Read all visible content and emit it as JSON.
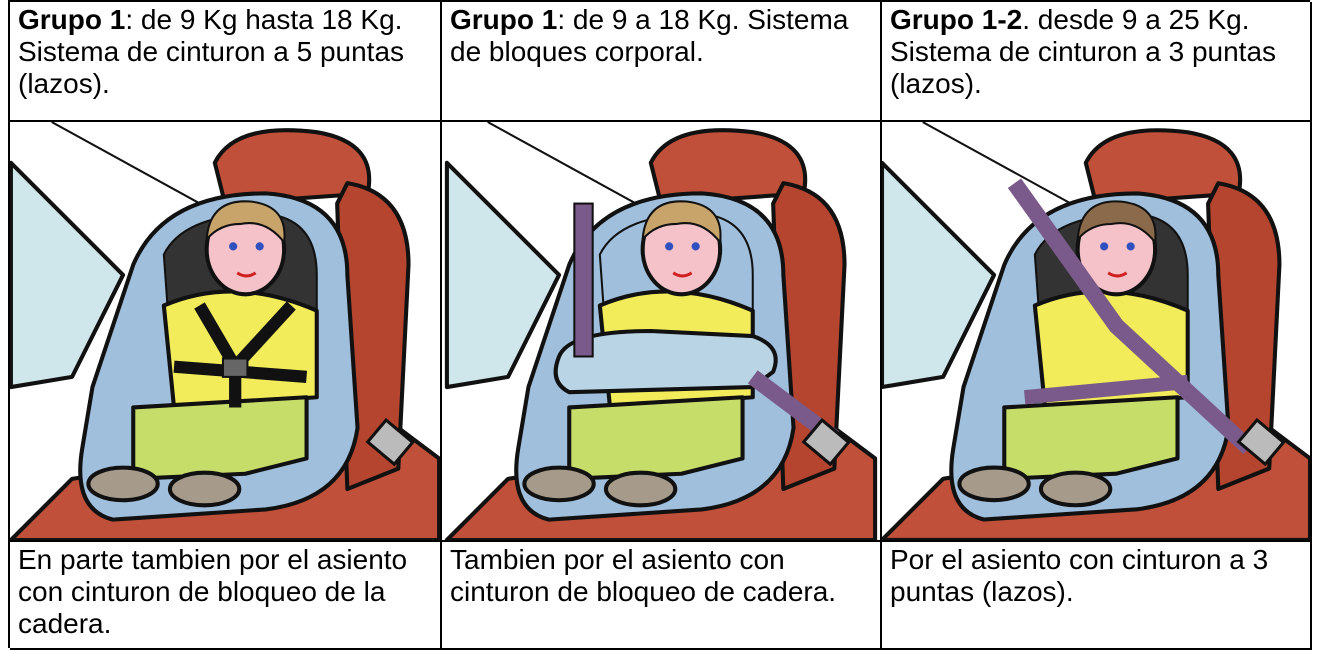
{
  "columns": [
    {
      "title_bold": "Grupo 1",
      "title_rest": ": de 9 Kg hasta 18 Kg. Sistema de cinturon a 5 puntas (lazos).",
      "caption": "En parte tambien por el asiento con cinturon de bloqueo de la cadera."
    },
    {
      "title_bold": "Grupo 1",
      "title_rest": ": de 9 a 18 Kg. Sistema de bloques corporal.",
      "caption": "Tambien por el asiento con cinturon de bloqueo de cadera."
    },
    {
      "title_bold": "Grupo 1-2",
      "title_rest": ". desde 9 a 25 Kg. Sistema de cinturon a 3 puntas (lazos).",
      "caption": "Por el asiento con cinturon a 3 puntas (lazos)."
    }
  ]
}
